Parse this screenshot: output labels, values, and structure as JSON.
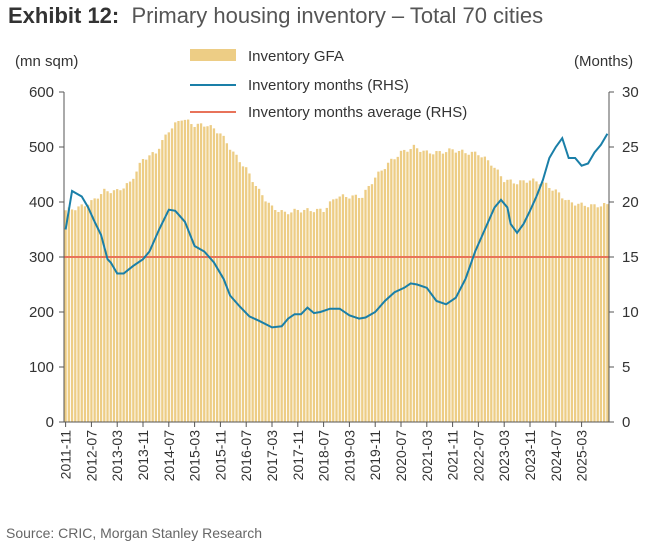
{
  "header": {
    "exhibit_label": "Exhibit 12:",
    "title": "Primary housing inventory – Total 70 cities"
  },
  "footer": {
    "source": "Source: CRIC, Morgan Stanley Research"
  },
  "chart_data": {
    "type": "bar",
    "title": "Primary housing inventory – Total 70 cities",
    "left_axis": {
      "unit_label": "(mn sqm)",
      "ylim": [
        0,
        600
      ],
      "ticks": [
        0,
        100,
        200,
        300,
        400,
        500,
        600
      ]
    },
    "right_axis": {
      "unit_label": "(Months)",
      "ylim": [
        0,
        30
      ],
      "ticks": [
        0,
        5,
        10,
        15,
        20,
        25,
        30
      ]
    },
    "x_tick_labels": [
      "2011-11",
      "2012-07",
      "2013-03",
      "2013-11",
      "2014-07",
      "2015-03",
      "2015-11",
      "2016-07",
      "2017-03",
      "2017-11",
      "2018-07",
      "2019-03",
      "2019-11",
      "2020-07",
      "2021-03",
      "2021-11",
      "2022-07",
      "2023-03",
      "2023-11",
      "2024-07",
      "2025-03"
    ],
    "x_range": [
      "2011-11",
      "2025-11"
    ],
    "grid": false,
    "legend_position": "top-center",
    "series": [
      {
        "name": "Inventory GFA",
        "type": "bar",
        "axis": "left",
        "color": "#EDCD85",
        "monthly_interp": [
          [
            "2011-11",
            385
          ],
          [
            "2012-03",
            390
          ],
          [
            "2012-07",
            400
          ],
          [
            "2012-11",
            420
          ],
          [
            "2013-03",
            420
          ],
          [
            "2013-07",
            435
          ],
          [
            "2013-11",
            478
          ],
          [
            "2014-03",
            490
          ],
          [
            "2014-07",
            530
          ],
          [
            "2014-11",
            552
          ],
          [
            "2015-03",
            540
          ],
          [
            "2015-07",
            540
          ],
          [
            "2015-11",
            525
          ],
          [
            "2016-03",
            490
          ],
          [
            "2016-07",
            460
          ],
          [
            "2016-11",
            420
          ],
          [
            "2017-03",
            390
          ],
          [
            "2017-07",
            380
          ],
          [
            "2017-11",
            385
          ],
          [
            "2018-03",
            385
          ],
          [
            "2018-07",
            385
          ],
          [
            "2018-11",
            410
          ],
          [
            "2019-03",
            410
          ],
          [
            "2019-07",
            410
          ],
          [
            "2019-11",
            445
          ],
          [
            "2020-03",
            470
          ],
          [
            "2020-07",
            490
          ],
          [
            "2020-11",
            500
          ],
          [
            "2021-03",
            490
          ],
          [
            "2021-07",
            490
          ],
          [
            "2021-11",
            495
          ],
          [
            "2022-03",
            490
          ],
          [
            "2022-07",
            488
          ],
          [
            "2022-11",
            470
          ],
          [
            "2023-03",
            440
          ],
          [
            "2023-07",
            435
          ],
          [
            "2023-11",
            440
          ],
          [
            "2024-03",
            435
          ],
          [
            "2024-07",
            420
          ],
          [
            "2024-11",
            400
          ],
          [
            "2025-03",
            395
          ],
          [
            "2025-07",
            393
          ],
          [
            "2025-11",
            395
          ]
        ]
      },
      {
        "name": "Inventory months (RHS)",
        "type": "line",
        "axis": "right",
        "color": "#1A7FA8",
        "points": [
          [
            "2011-11",
            17.5
          ],
          [
            "2012-01",
            21.0
          ],
          [
            "2012-04",
            20.5
          ],
          [
            "2012-06",
            19.5
          ],
          [
            "2012-08",
            18.2
          ],
          [
            "2012-10",
            17.0
          ],
          [
            "2012-12",
            14.8
          ],
          [
            "2013-01",
            14.5
          ],
          [
            "2013-03",
            13.5
          ],
          [
            "2013-05",
            13.5
          ],
          [
            "2013-08",
            14.2
          ],
          [
            "2013-11",
            14.8
          ],
          [
            "2014-01",
            15.5
          ],
          [
            "2014-04",
            17.5
          ],
          [
            "2014-07",
            19.3
          ],
          [
            "2014-09",
            19.2
          ],
          [
            "2014-12",
            18.2
          ],
          [
            "2015-03",
            16.0
          ],
          [
            "2015-06",
            15.5
          ],
          [
            "2015-09",
            14.5
          ],
          [
            "2015-12",
            13.0
          ],
          [
            "2016-02",
            11.5
          ],
          [
            "2016-05",
            10.5
          ],
          [
            "2016-08",
            9.6
          ],
          [
            "2016-11",
            9.2
          ],
          [
            "2017-03",
            8.6
          ],
          [
            "2017-06",
            8.7
          ],
          [
            "2017-08",
            9.4
          ],
          [
            "2017-10",
            9.8
          ],
          [
            "2017-12",
            9.8
          ],
          [
            "2018-02",
            10.4
          ],
          [
            "2018-04",
            9.9
          ],
          [
            "2018-06",
            10.0
          ],
          [
            "2018-09",
            10.3
          ],
          [
            "2018-12",
            10.3
          ],
          [
            "2019-03",
            9.7
          ],
          [
            "2019-06",
            9.4
          ],
          [
            "2019-08",
            9.5
          ],
          [
            "2019-11",
            10.0
          ],
          [
            "2020-02",
            11.0
          ],
          [
            "2020-05",
            11.8
          ],
          [
            "2020-08",
            12.2
          ],
          [
            "2020-10",
            12.6
          ],
          [
            "2020-12",
            12.5
          ],
          [
            "2021-03",
            12.2
          ],
          [
            "2021-06",
            11.0
          ],
          [
            "2021-09",
            10.7
          ],
          [
            "2021-12",
            11.3
          ],
          [
            "2022-03",
            13.0
          ],
          [
            "2022-06",
            15.5
          ],
          [
            "2022-09",
            17.5
          ],
          [
            "2022-12",
            19.5
          ],
          [
            "2023-02",
            20.2
          ],
          [
            "2023-04",
            19.5
          ],
          [
            "2023-05",
            18.0
          ],
          [
            "2023-07",
            17.2
          ],
          [
            "2023-09",
            18.0
          ],
          [
            "2023-11",
            19.2
          ],
          [
            "2024-01",
            20.5
          ],
          [
            "2024-03",
            22.0
          ],
          [
            "2024-05",
            24.0
          ],
          [
            "2024-07",
            25.0
          ],
          [
            "2024-09",
            25.8
          ],
          [
            "2024-11",
            24.0
          ],
          [
            "2025-01",
            24.0
          ],
          [
            "2025-03",
            23.3
          ],
          [
            "2025-05",
            23.5
          ],
          [
            "2025-07",
            24.5
          ],
          [
            "2025-09",
            25.2
          ],
          [
            "2025-11",
            26.2
          ]
        ]
      },
      {
        "name": "Inventory months average (RHS)",
        "type": "hline",
        "axis": "right",
        "color": "#E8735A",
        "value": 15
      }
    ]
  }
}
